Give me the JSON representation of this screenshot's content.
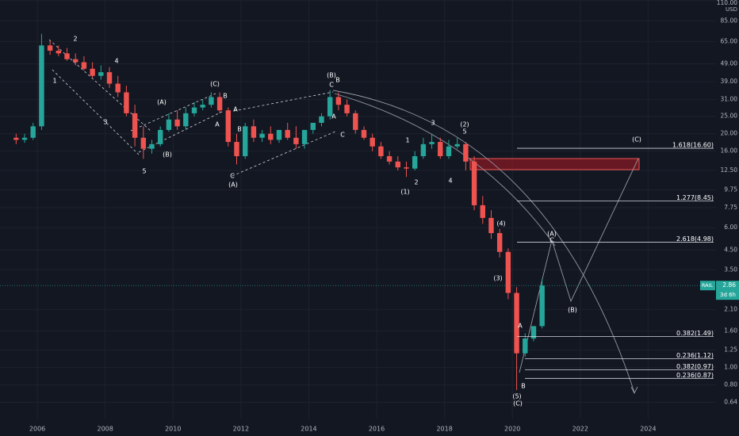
{
  "chart_data": {
    "type": "candlestick",
    "currency": "USD",
    "symbol": "RAIL",
    "last_price": 2.86,
    "countdown": "3d 6h",
    "log_scale": true,
    "grid": true,
    "up_color": "#26a69a",
    "down_color": "#ef5350",
    "xlim": [
      2004.9,
      2026
    ],
    "ylim": [
      0.52,
      111
    ],
    "xticks": [
      2006,
      2008,
      2010,
      2012,
      2014,
      2016,
      2018,
      2020,
      2022,
      2024
    ],
    "yticks": [
      {
        "value": 110,
        "label": "110.00"
      },
      {
        "value": 85,
        "label": "85.00"
      },
      {
        "value": 65,
        "label": "65.00"
      },
      {
        "value": 49,
        "label": "49.00"
      },
      {
        "value": 39,
        "label": "39.00"
      },
      {
        "value": 31,
        "label": "31.00"
      },
      {
        "value": 25,
        "label": "25.00"
      },
      {
        "value": 20,
        "label": "20.00"
      },
      {
        "value": 16,
        "label": "16.00"
      },
      {
        "value": 12.5,
        "label": "12.50"
      },
      {
        "value": 9.75,
        "label": "9.75"
      },
      {
        "value": 7.75,
        "label": "7.75"
      },
      {
        "value": 6,
        "label": "6.00"
      },
      {
        "value": 4.5,
        "label": "4.50"
      },
      {
        "value": 3.5,
        "label": "3.50"
      },
      {
        "value": 2.1,
        "label": "2.10"
      },
      {
        "value": 1.6,
        "label": "1.60"
      },
      {
        "value": 1.25,
        "label": "1.25"
      },
      {
        "value": 1,
        "label": "1.00"
      },
      {
        "value": 0.8,
        "label": "0.80"
      },
      {
        "value": 0.64,
        "label": "0.64"
      }
    ],
    "x": [
      2005.375,
      2005.625,
      2005.875,
      2006.125,
      2006.375,
      2006.625,
      2006.875,
      2007.125,
      2007.375,
      2007.625,
      2007.875,
      2008.125,
      2008.375,
      2008.625,
      2008.875,
      2009.125,
      2009.375,
      2009.625,
      2009.875,
      2010.125,
      2010.375,
      2010.625,
      2010.875,
      2011.125,
      2011.375,
      2011.625,
      2011.875,
      2012.125,
      2012.375,
      2012.625,
      2012.875,
      2013.125,
      2013.375,
      2013.625,
      2013.875,
      2014.125,
      2014.375,
      2014.625,
      2014.875,
      2015.125,
      2015.375,
      2015.625,
      2015.875,
      2016.125,
      2016.375,
      2016.625,
      2016.875,
      2017.125,
      2017.375,
      2017.625,
      2017.875,
      2018.125,
      2018.375,
      2018.625,
      2018.875,
      2019.125,
      2019.375,
      2019.625,
      2019.875,
      2020.125,
      2020.375,
      2020.625,
      2020.875
    ],
    "open": [
      19,
      18.5,
      19,
      22,
      62,
      58,
      56,
      52,
      50,
      46,
      42,
      44,
      38,
      34,
      26,
      19,
      16.5,
      17.5,
      21,
      24,
      22,
      26,
      28,
      29,
      32,
      27,
      18,
      15,
      22,
      19,
      20,
      18.5,
      21,
      19,
      17.5,
      21,
      23,
      25,
      32,
      29,
      26,
      21,
      19,
      17,
      15,
      14,
      13,
      12.8,
      15,
      17.5,
      18,
      15,
      17,
      17.5,
      14,
      8,
      6.8,
      5.6,
      4.4,
      2.6,
      1.2,
      1.45,
      1.7
    ],
    "high": [
      20,
      20,
      23,
      72,
      66,
      62,
      60,
      56,
      54,
      50,
      48,
      47,
      42,
      37,
      29,
      22,
      18.5,
      22,
      26,
      27,
      28,
      30,
      31,
      34,
      34,
      28,
      20,
      23,
      24,
      21,
      22,
      21,
      23,
      22,
      20,
      23,
      26,
      35,
      34,
      31,
      27,
      22,
      20,
      18,
      16,
      15,
      14,
      16,
      19,
      20,
      19,
      18.5,
      19,
      18,
      15,
      9,
      7.5,
      5.9,
      4.6,
      2.8,
      1.55,
      1.7,
      3.1
    ],
    "low": [
      17.5,
      17.8,
      18.5,
      21,
      55,
      54,
      51,
      48,
      45,
      41,
      40,
      36,
      32,
      25,
      17,
      14.5,
      15.5,
      17,
      20.5,
      21,
      21,
      25,
      27,
      28,
      26,
      17,
      13.5,
      14.5,
      18,
      18,
      17.5,
      17.8,
      18.5,
      16.5,
      16.5,
      20,
      22,
      24,
      27,
      25,
      20,
      18.5,
      16,
      14.5,
      13.5,
      12.5,
      11.5,
      12.5,
      14.5,
      16.5,
      14.5,
      14.5,
      16.5,
      12.5,
      7.5,
      6.3,
      5.2,
      4.1,
      2.4,
      0.75,
      1.15,
      1.4,
      1.65
    ],
    "close": [
      18.5,
      19,
      22,
      62,
      58,
      56,
      52,
      50,
      46,
      42,
      44,
      38,
      34,
      26,
      19,
      16.5,
      17.5,
      21,
      24,
      22,
      26,
      28,
      29,
      32,
      27,
      18,
      15,
      22,
      19,
      20,
      18.5,
      21,
      19,
      17.5,
      21,
      23,
      25,
      32,
      29,
      26,
      21,
      19,
      17,
      15,
      14,
      13,
      12.8,
      15,
      17.5,
      18,
      15,
      17,
      17.5,
      14,
      8,
      6.8,
      5.6,
      4.4,
      2.6,
      1.2,
      1.45,
      1.7,
      2.86
    ],
    "fib_levels": [
      {
        "label": "1.618(16.60)",
        "value": 16.6
      },
      {
        "label": "1.277(8.45)",
        "value": 8.45
      },
      {
        "label": "2.618(4.98)",
        "value": 4.98
      },
      {
        "label": "0.382(1.49)",
        "value": 1.49
      },
      {
        "label": "0.236(1.12)",
        "value": 1.12
      },
      {
        "label": "0.382(0.97)",
        "value": 0.97
      },
      {
        "label": "0.236(0.87)",
        "value": 0.87
      }
    ],
    "annotations": [
      "2",
      "1",
      "3",
      "4",
      "5",
      "(A)",
      "(B)",
      "(C)",
      "B",
      "A",
      "A",
      "B",
      "C",
      "(A)",
      "(B)",
      "B",
      "C",
      "A",
      "C",
      "1",
      "2",
      "3",
      "4",
      "(1)",
      "(2)",
      "5",
      "(4)",
      "(3)",
      "A",
      "(5)",
      "B",
      "(C)",
      "(A)",
      "C",
      "(B)",
      "(C)"
    ]
  }
}
